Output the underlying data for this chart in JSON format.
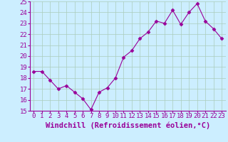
{
  "x": [
    0,
    1,
    2,
    3,
    4,
    5,
    6,
    7,
    8,
    9,
    10,
    11,
    12,
    13,
    14,
    15,
    16,
    17,
    18,
    19,
    20,
    21,
    22,
    23
  ],
  "y": [
    18.6,
    18.6,
    17.8,
    17.0,
    17.3,
    16.7,
    16.1,
    15.1,
    16.7,
    17.1,
    18.0,
    19.9,
    20.5,
    21.6,
    22.2,
    23.2,
    23.0,
    24.2,
    22.9,
    24.0,
    24.8,
    23.2,
    22.5,
    21.6
  ],
  "line_color": "#990099",
  "marker": "D",
  "marker_size": 2.5,
  "bg_color": "#cceeff",
  "grid_color": "#aaccbb",
  "xlabel": "Windchill (Refroidissement éolien,°C)",
  "xlabel_color": "#990099",
  "xlabel_fontsize": 7.5,
  "tick_color": "#990099",
  "tick_fontsize": 6.5,
  "ylim": [
    15,
    25
  ],
  "xlim": [
    -0.5,
    23.5
  ],
  "yticks": [
    15,
    16,
    17,
    18,
    19,
    20,
    21,
    22,
    23,
    24,
    25
  ],
  "xticks": [
    0,
    1,
    2,
    3,
    4,
    5,
    6,
    7,
    8,
    9,
    10,
    11,
    12,
    13,
    14,
    15,
    16,
    17,
    18,
    19,
    20,
    21,
    22,
    23
  ]
}
